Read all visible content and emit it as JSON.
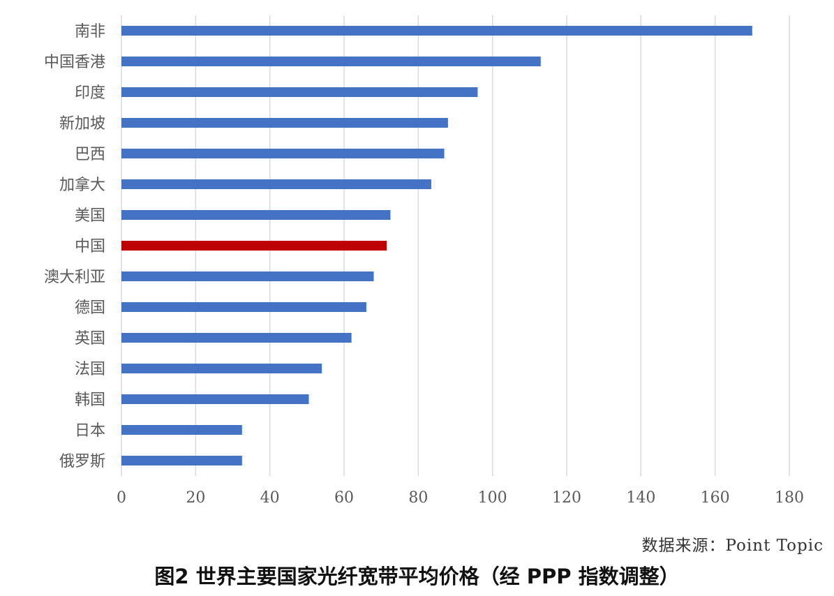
{
  "chart_data": {
    "type": "bar",
    "orientation": "horizontal",
    "categories": [
      "南非",
      "中国香港",
      "印度",
      "新加坡",
      "巴西",
      "加拿大",
      "美国",
      "中国",
      "澳大利亚",
      "德国",
      "英国",
      "法国",
      "韩国",
      "日本",
      "俄罗斯"
    ],
    "values": [
      170,
      113,
      96,
      88,
      87,
      83.5,
      72.5,
      71.5,
      68,
      66,
      62,
      54,
      50.5,
      32.5,
      32.5
    ],
    "highlight_category": "中国",
    "xlim": [
      0,
      180
    ],
    "xticks": [
      0,
      20,
      40,
      60,
      80,
      100,
      120,
      140,
      160,
      180
    ],
    "grid": "vertical",
    "xlabel": "",
    "ylabel": "",
    "colors": {
      "bar": "#4472c4",
      "highlight": "#c00000",
      "grid": "#d9d9d9"
    }
  },
  "source_note": "数据来源：Point  Topic",
  "caption": "图2  世界主要国家光纤宽带平均价格（经 PPP 指数调整）"
}
